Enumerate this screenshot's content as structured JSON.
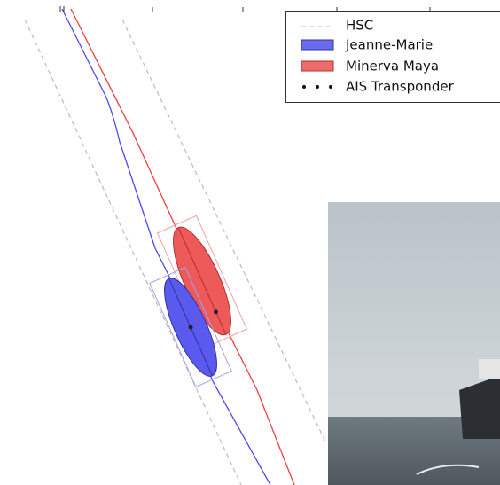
{
  "legend": {
    "entries": [
      {
        "label": "HSC"
      },
      {
        "label": "Jeanne-Marie"
      },
      {
        "label": "Minerva Maya"
      },
      {
        "label": "AIS Transponder"
      }
    ]
  }
}
